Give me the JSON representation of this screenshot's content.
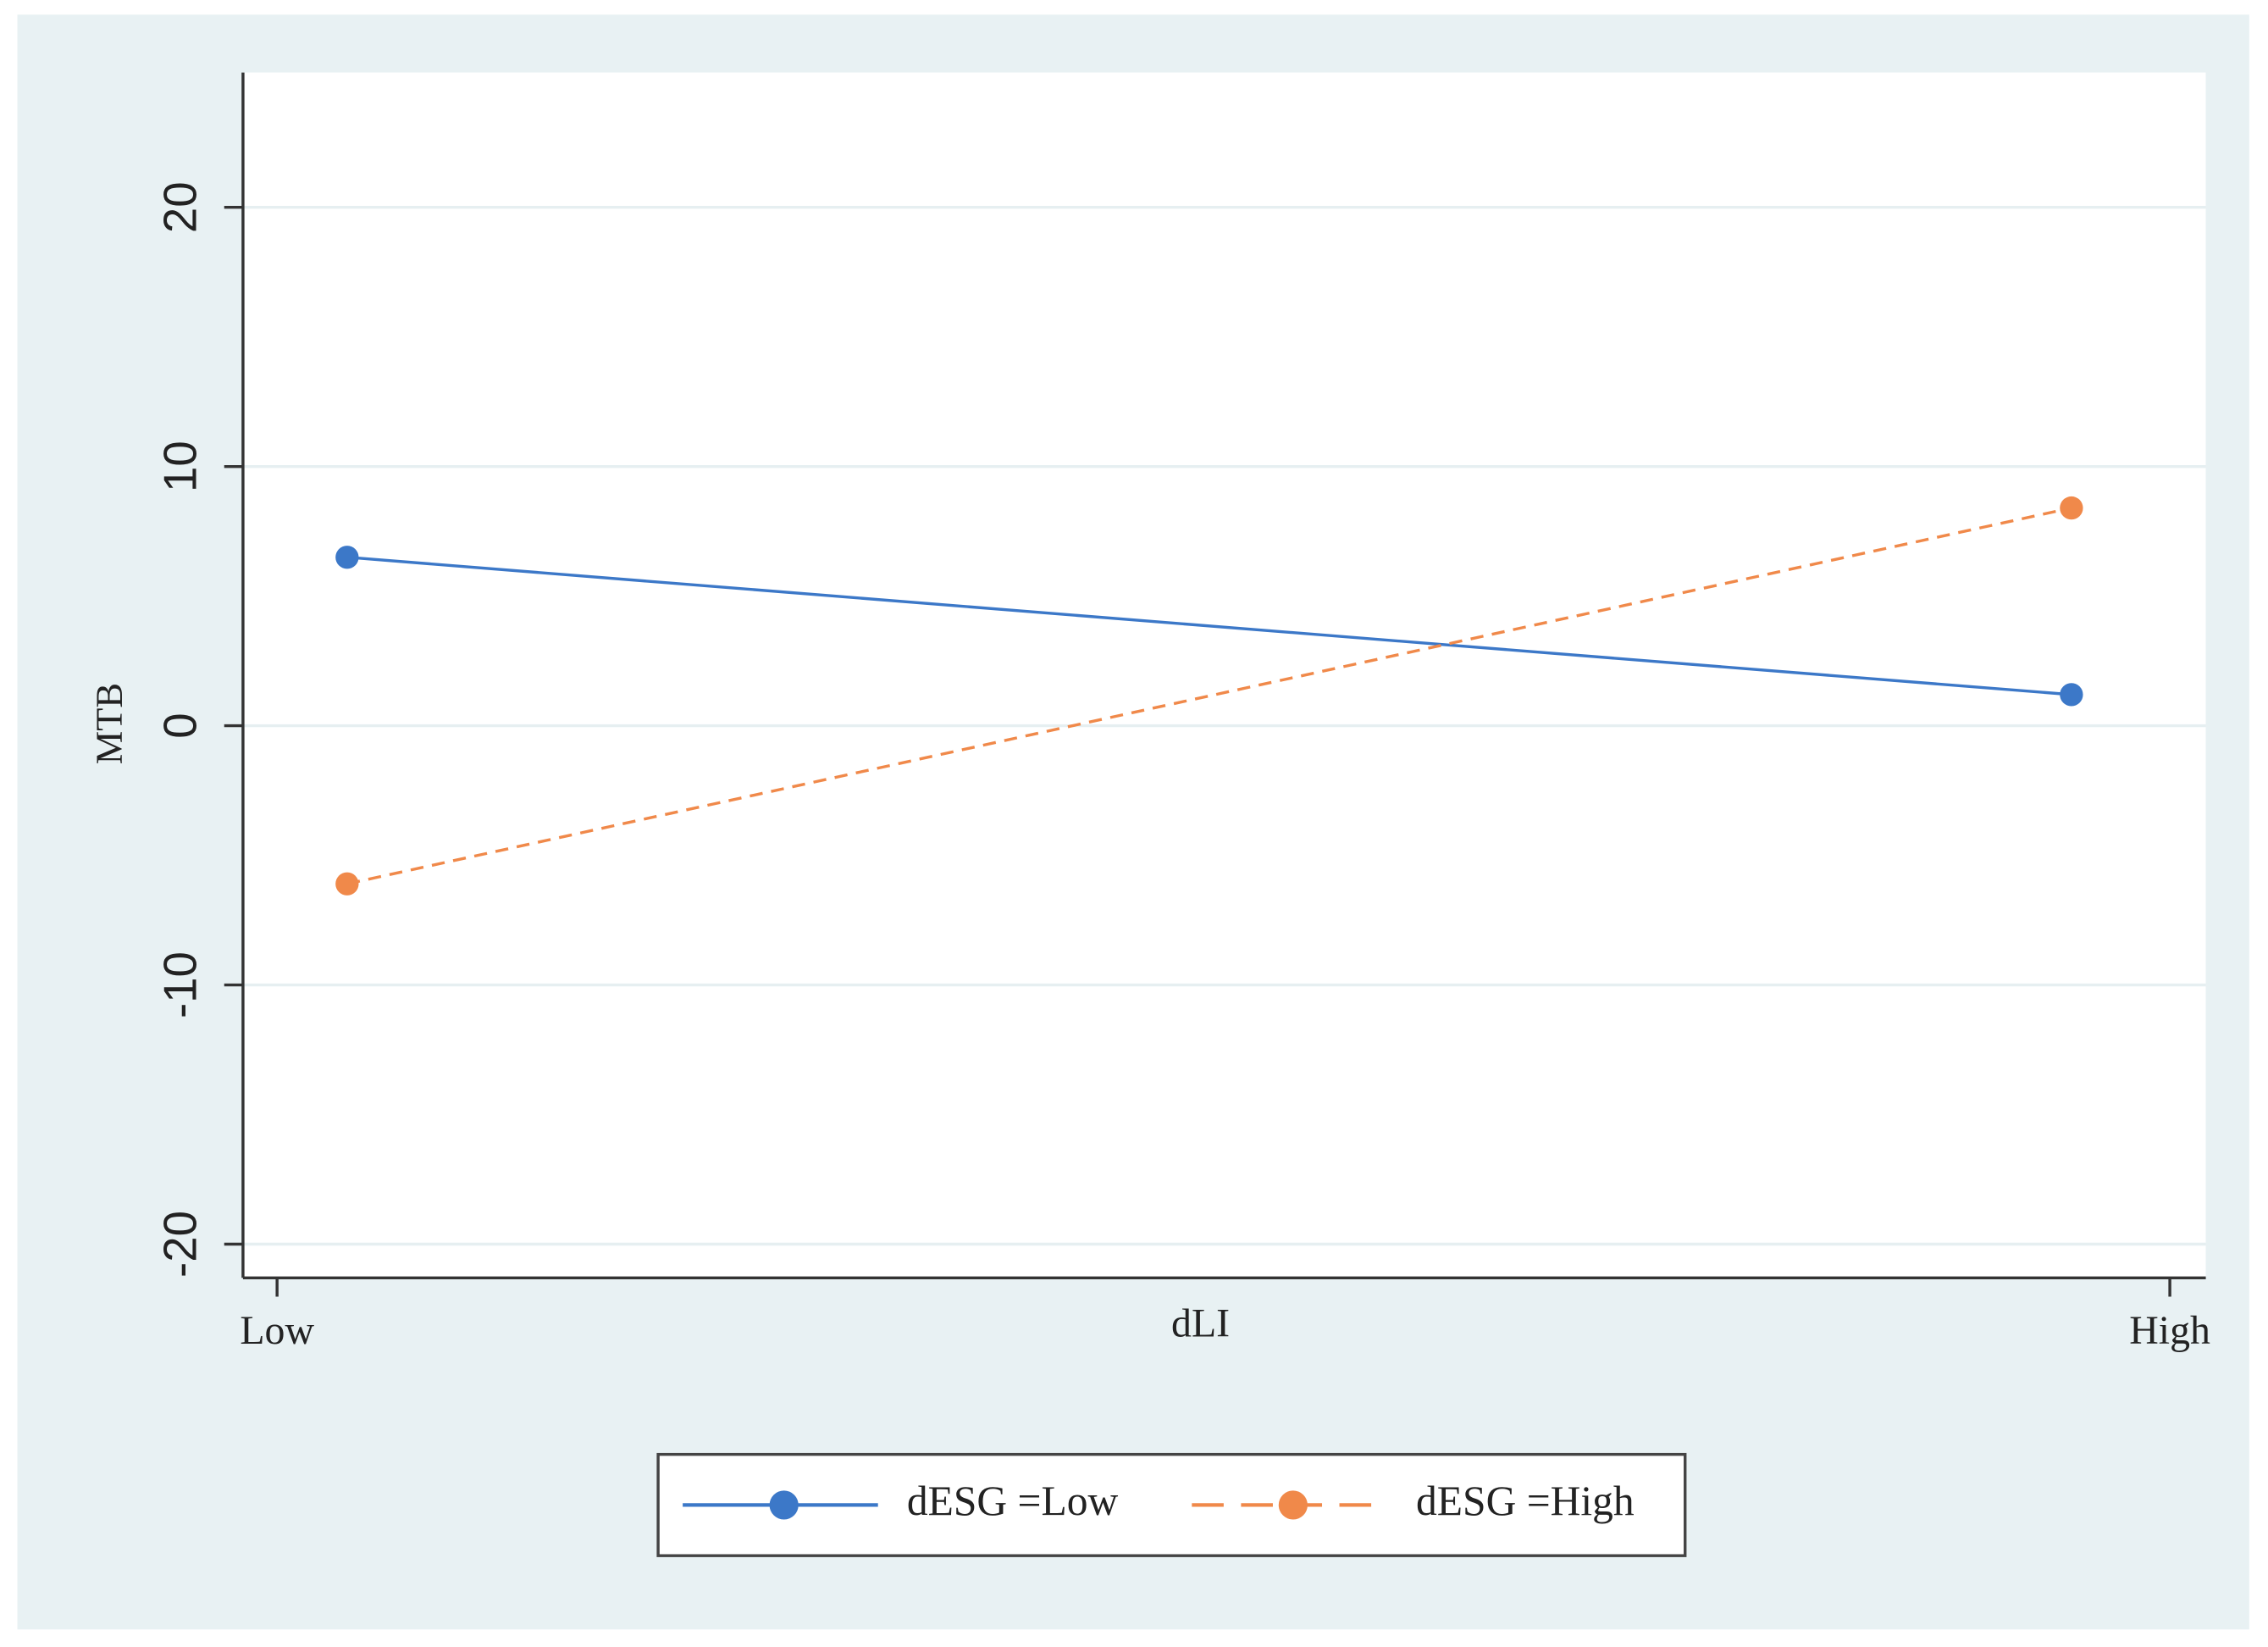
{
  "chart_data": {
    "type": "line",
    "x_label": "dLI",
    "y_label": "MTB",
    "x": [
      0.037,
      0.948
    ],
    "xlim": [
      -0.018,
      1.019
    ],
    "xticks": [
      {
        "value": 0,
        "label": "Low"
      },
      {
        "value": 1,
        "label": "High"
      }
    ],
    "ylim": [
      -21.3,
      25.2
    ],
    "yticks": [
      -20,
      -10,
      0,
      10,
      20
    ],
    "grid": true,
    "legend": "bottom",
    "series": [
      {
        "name": "dESG =Low",
        "color": "#3c78c8",
        "dash": false,
        "values": [
          6.5,
          1.2
        ]
      },
      {
        "name": "dESG =High",
        "color": "#f0894a",
        "dash": true,
        "values": [
          -6.1,
          8.4
        ]
      }
    ]
  }
}
